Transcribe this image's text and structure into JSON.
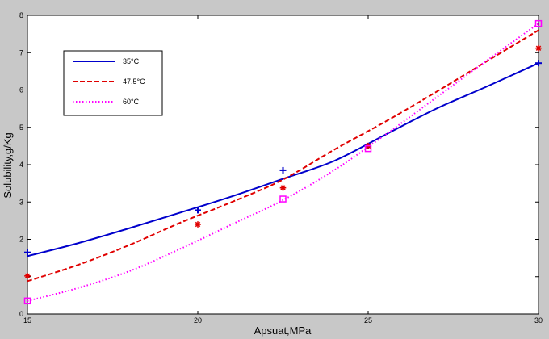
{
  "chart_data": {
    "type": "line",
    "xlabel": "Apsuat,MPa",
    "ylabel": "Solubility,g/Kg",
    "xlim": [
      15,
      30
    ],
    "ylim": [
      0,
      8
    ],
    "xticks": [
      "15",
      "20",
      "25",
      "30"
    ],
    "yticks": [
      "0",
      "",
      "2",
      "3",
      "4",
      "5",
      "6",
      "7",
      "8"
    ],
    "grid": false,
    "legend_position": "top-left",
    "series": [
      {
        "name": "35°C",
        "color": "#0000cc",
        "line_style": "solid",
        "marker": "plus",
        "fit_x": [
          15,
          16.5,
          18,
          19.5,
          21,
          22.5,
          24,
          25.5,
          27,
          28.5,
          30
        ],
        "fit_y": [
          1.55,
          1.9,
          2.3,
          2.72,
          3.15,
          3.62,
          4.1,
          4.8,
          5.5,
          6.1,
          6.72
        ],
        "points_x": [
          15,
          20,
          22.5,
          25,
          30
        ],
        "points_y": [
          1.65,
          2.78,
          3.85,
          4.5,
          6.72
        ]
      },
      {
        "name": "47.5°C",
        "color": "#e00000",
        "line_style": "dashed",
        "marker": "asterisk",
        "fit_x": [
          15,
          16.5,
          18,
          19.5,
          21,
          22.5,
          24,
          25.5,
          27,
          28.5,
          30
        ],
        "fit_y": [
          0.88,
          1.32,
          1.85,
          2.45,
          3.0,
          3.6,
          4.4,
          5.15,
          5.95,
          6.78,
          7.6
        ],
        "points_x": [
          15,
          20,
          22.5,
          25,
          30
        ],
        "points_y": [
          1.02,
          2.4,
          3.38,
          4.5,
          7.12
        ]
      },
      {
        "name": "60°C",
        "color": "#ff00ff",
        "line_style": "dotted",
        "marker": "square",
        "fit_x": [
          15,
          16.5,
          18,
          19.5,
          21,
          22.5,
          24,
          25.5,
          27,
          28.5,
          30
        ],
        "fit_y": [
          0.35,
          0.7,
          1.15,
          1.75,
          2.4,
          3.05,
          3.85,
          4.8,
          5.8,
          6.8,
          7.78
        ],
        "points_x": [
          15,
          22.5,
          25,
          30
        ],
        "points_y": [
          0.35,
          3.08,
          4.43,
          7.78
        ]
      }
    ]
  }
}
